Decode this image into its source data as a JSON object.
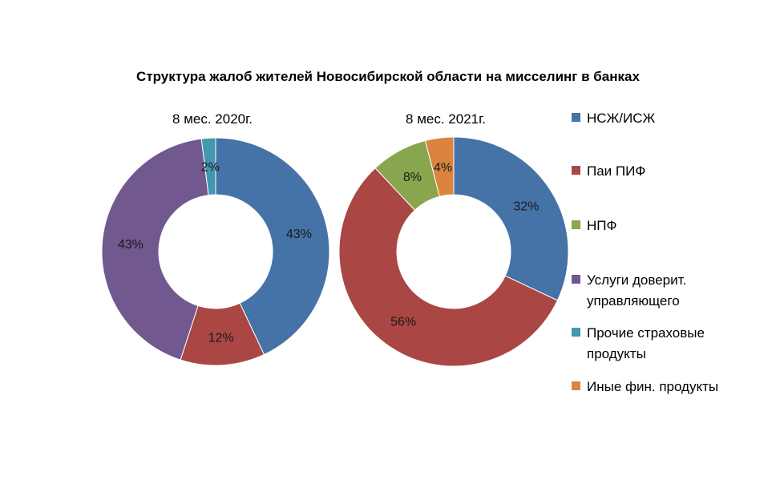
{
  "chart_data": {
    "type": "pie",
    "title": "Структура жалоб жителей Новосибирской области на мисселинг в банках",
    "legend_position": "right",
    "legend": [
      {
        "label": "НСЖ/ИСЖ",
        "color": "#4572A7"
      },
      {
        "label": "Паи ПИФ",
        "color": "#AA4643"
      },
      {
        "label": "НПФ",
        "color": "#89A54E"
      },
      {
        "label": "Услуги доверит. управляющего",
        "color": "#71588F"
      },
      {
        "label": "Прочие страховые продукты",
        "color": "#4198AF"
      },
      {
        "label": "Иные фин. продукты",
        "color": "#DB843D"
      }
    ],
    "charts": [
      {
        "subtitle": "8 мес. 2020г.",
        "slices": [
          {
            "category": "НСЖ/ИСЖ",
            "value": 43,
            "label": "43%"
          },
          {
            "category": "Паи ПИФ",
            "value": 12,
            "label": "12%"
          },
          {
            "category": "Услуги доверит. управляющего",
            "value": 43,
            "label": "43%"
          },
          {
            "category": "Прочие страховые продукты",
            "value": 2,
            "label": "2%"
          }
        ]
      },
      {
        "subtitle": "8 мес. 2021г.",
        "slices": [
          {
            "category": "НСЖ/ИСЖ",
            "value": 32,
            "label": "32%"
          },
          {
            "category": "Паи ПИФ",
            "value": 56,
            "label": "56%"
          },
          {
            "category": "НПФ",
            "value": 8,
            "label": "8%"
          },
          {
            "category": "Иные фин. продукты",
            "value": 4,
            "label": "4%"
          }
        ]
      }
    ]
  }
}
